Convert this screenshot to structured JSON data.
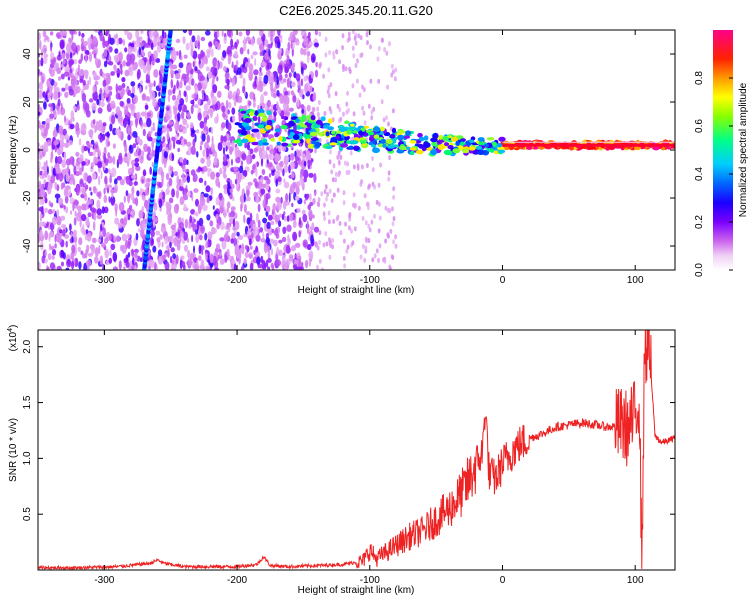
{
  "title": "C2E6.2025.345.20.11.G20",
  "colors": {
    "snr_line": "#ee2222",
    "background": "#ffffff",
    "axis": "#000000",
    "colormap": [
      "#f6e0f6",
      "#cc66ee",
      "#7a00ff",
      "#0000ff",
      "#00bfff",
      "#00ff66",
      "#ffff00",
      "#ff8800",
      "#ff0000",
      "#ff00aa"
    ]
  },
  "chart_data": [
    {
      "type": "heatmap",
      "xlabel": "Height of straight line (km)",
      "ylabel": "Frequency (Hz)",
      "xlim": [
        -350,
        130
      ],
      "ylim": [
        -50,
        50
      ],
      "xticks": [
        -300,
        -200,
        -100,
        0,
        100
      ],
      "yticks": [
        -40,
        -20,
        0,
        20,
        40
      ],
      "colorbar": {
        "label": "Normalized spectral amplitude",
        "range": [
          0.0,
          1.0
        ],
        "ticks": [
          0.0,
          0.2,
          0.4,
          0.6,
          0.8
        ],
        "tick_labels": [
          "0.0",
          "0.2",
          "0.4",
          "0.6",
          "0.8"
        ]
      },
      "features": [
        {
          "name": "noise band",
          "x_range": [
            -350,
            -140
          ],
          "y_range": [
            -50,
            50
          ],
          "amplitude": 0.15
        },
        {
          "name": "diagonal streak",
          "x0": -270,
          "y0": -50,
          "x1": -250,
          "y1": 50,
          "amplitude": 0.3
        },
        {
          "name": "main signal",
          "points": [
            [
              -200,
              10
            ],
            [
              -150,
              8
            ],
            [
              -100,
              5
            ],
            [
              -50,
              2
            ],
            [
              0,
              2
            ],
            [
              50,
              2
            ],
            [
              100,
              2
            ],
            [
              130,
              2
            ]
          ],
          "amplitude": 0.9
        }
      ]
    },
    {
      "type": "line",
      "xlabel": "Height of straight line (km)",
      "ylabel": "SNR (10 * v/v)",
      "yscale_label": "(x10",
      "yscale_exp": "4",
      "yscale_close": ")",
      "xlim": [
        -350,
        130
      ],
      "ylim": [
        0,
        2.15
      ],
      "xticks": [
        -300,
        -200,
        -100,
        0,
        100
      ],
      "yticks": [
        0.5,
        1.0,
        1.5,
        2.0
      ],
      "ytick_labels": [
        "0.5",
        "1.0",
        "1.5",
        "2.0"
      ],
      "series": [
        {
          "x": [
            -350,
            -320,
            -290,
            -265,
            -260,
            -255,
            -240,
            -220,
            -200,
            -185,
            -180,
            -175,
            -160,
            -140,
            -120,
            -105,
            -100,
            -95,
            -90,
            -80,
            -70,
            -60,
            -50,
            -45,
            -40,
            -35,
            -30,
            -25,
            -20,
            -15,
            -13,
            -10,
            -5,
            0,
            10,
            20,
            30,
            40,
            50,
            60,
            70,
            80,
            90,
            95,
            100,
            103,
            105,
            107,
            110,
            115,
            120,
            125,
            130
          ],
          "y": [
            0.02,
            0.02,
            0.03,
            0.06,
            0.09,
            0.06,
            0.03,
            0.03,
            0.03,
            0.05,
            0.12,
            0.04,
            0.03,
            0.04,
            0.05,
            0.08,
            0.18,
            0.1,
            0.14,
            0.22,
            0.3,
            0.35,
            0.45,
            0.5,
            0.55,
            0.62,
            0.7,
            0.8,
            0.95,
            1.05,
            1.48,
            0.85,
            0.82,
            0.95,
            1.1,
            1.18,
            1.22,
            1.28,
            1.3,
            1.32,
            1.3,
            1.28,
            1.3,
            1.26,
            1.38,
            1.6,
            0.05,
            1.9,
            2.1,
            1.2,
            1.14,
            1.16,
            1.18
          ]
        }
      ]
    }
  ]
}
